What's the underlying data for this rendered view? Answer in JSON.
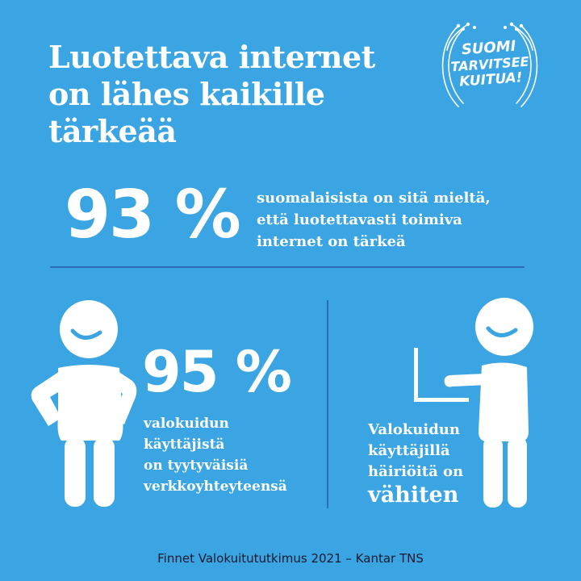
{
  "headline": [
    "Luotettava internet",
    "on lähes kaikille",
    "tärkeää"
  ],
  "top_stat": {
    "value": "93 %",
    "text": [
      "suomalaisista on sitä mieltä,",
      "että luotettavasti toimiva",
      "internet on tärkeä"
    ]
  },
  "left_stat": {
    "value": "95 %",
    "text": [
      "valokuidun",
      "käyttäjistä",
      "on tyytyväisiä",
      "verkkoyhteyteensä"
    ]
  },
  "right_stat": {
    "text": [
      "Valokuidun",
      "käyttäjillä",
      "häiriöitä on"
    ],
    "emphasis": "vähiten"
  },
  "logo": {
    "lines": [
      "SUOMI",
      "TARVITSEE",
      "KUITUA!"
    ]
  },
  "footer": "Finnet Valokuitututkimus 2021 – Kantar TNS",
  "colors": {
    "background": "#3aa5e2",
    "divider": "#2f6ab6",
    "text": "#ffffff",
    "footer_text": "#1a1a2e"
  },
  "icons": [
    "person-hands-on-hips-icon",
    "person-at-laptop-icon",
    "fiber-logo-icon"
  ]
}
